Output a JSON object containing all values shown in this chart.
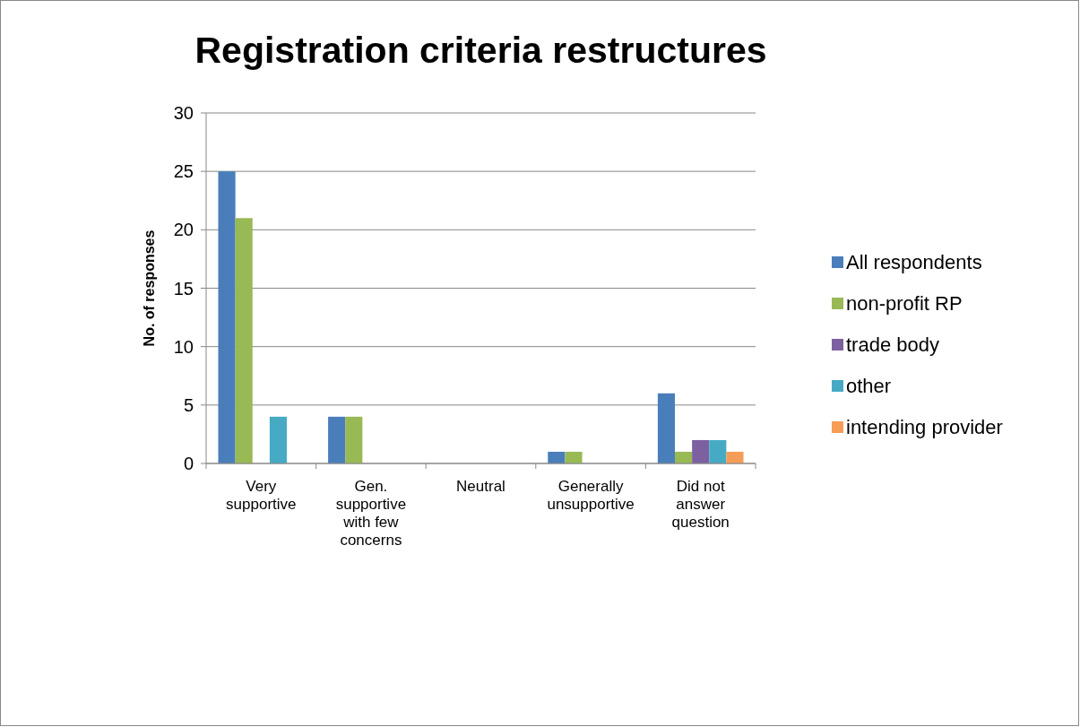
{
  "chart_data": {
    "type": "bar",
    "title": "Registration criteria restructures",
    "ylabel": "No. of responses",
    "categories": [
      "Very supportive",
      "Gen. supportive with few concerns",
      "Neutral",
      "Generally unsupportive",
      "Did not answer question"
    ],
    "series": [
      {
        "name": "All respondents",
        "color": "#4a7ebb",
        "values": [
          25,
          4,
          0,
          1,
          6
        ]
      },
      {
        "name": "non-profit RP",
        "color": "#98b954",
        "values": [
          21,
          4,
          0,
          1,
          1
        ]
      },
      {
        "name": "trade body",
        "color": "#7d60a0",
        "values": [
          0,
          0,
          0,
          0,
          2
        ]
      },
      {
        "name": "other",
        "color": "#46aac5",
        "values": [
          4,
          0,
          0,
          0,
          2
        ]
      },
      {
        "name": "intending provider",
        "color": "#f59d56",
        "values": [
          0,
          0,
          0,
          0,
          1
        ]
      }
    ],
    "ylim": [
      0,
      30
    ],
    "yticks": [
      0,
      5,
      10,
      15,
      20,
      25,
      30
    ],
    "grid": "y",
    "legend": "right"
  }
}
